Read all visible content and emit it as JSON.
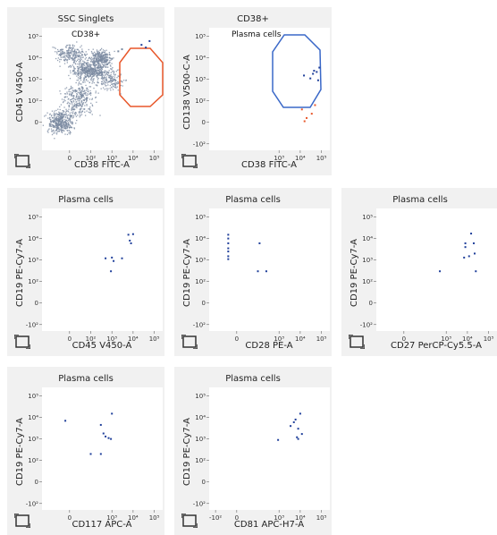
{
  "panels": [
    {
      "id": "ssc-singlets",
      "title": "SSC Singlets",
      "x_axis": "CD38 FITC-A",
      "y_axis": "CD45 V450-A",
      "gate_label": "CD38+",
      "gate_color": "#e8572a",
      "x_ticks": [
        "0",
        "10²",
        "10³",
        "10⁴",
        "10⁵"
      ],
      "y_ticks": [
        "10⁵",
        "10⁴",
        "10³",
        "10²",
        "0"
      ]
    },
    {
      "id": "cd38-pos",
      "title": "CD38+",
      "x_axis": "CD38 FITC-A",
      "y_axis": "CD138 V500-C-A",
      "gate_label": "Plasma cells",
      "gate_color": "#3a68c8",
      "x_ticks": [
        "10³",
        "10⁴",
        "10⁵"
      ],
      "y_ticks": [
        "10⁵",
        "10⁴",
        "10³",
        "10²",
        "0",
        "-10²"
      ]
    },
    {
      "id": "pc-cd45",
      "title": "Plasma cells",
      "x_axis": "CD45 V450-A",
      "y_axis": "CD19 PE-Cy7-A",
      "x_ticks": [
        "0",
        "10²",
        "10³",
        "10⁴",
        "10⁵"
      ],
      "y_ticks": [
        "10⁵",
        "10⁴",
        "10³",
        "10²",
        "0",
        "-10²"
      ]
    },
    {
      "id": "pc-cd28",
      "title": "Plasma cells",
      "x_axis": "CD28 PE-A",
      "y_axis": "CD19 PE-Cy7-A",
      "x_ticks": [
        "0",
        "10³",
        "10⁴",
        "10⁵"
      ],
      "y_ticks": [
        "10⁵",
        "10⁴",
        "10³",
        "10²",
        "0",
        "-10²"
      ]
    },
    {
      "id": "pc-cd27",
      "title": "Plasma cells",
      "x_axis": "CD27 PerCP-Cy5.5-A",
      "y_axis": "CD19 PE-Cy7-A",
      "x_ticks": [
        "0",
        "10³",
        "10⁴",
        "10⁵"
      ],
      "y_ticks": [
        "10⁵",
        "10⁴",
        "10³",
        "10²",
        "0",
        "-10²"
      ]
    },
    {
      "id": "pc-cd117",
      "title": "Plasma cells",
      "x_axis": "CD117 APC-A",
      "y_axis": "CD19 PE-Cy7-A",
      "x_ticks": [
        "0",
        "10³",
        "10⁴",
        "10⁵"
      ],
      "y_ticks": [
        "10⁵",
        "10⁴",
        "10³",
        "10²",
        "0",
        "-10²"
      ]
    },
    {
      "id": "pc-cd81",
      "title": "Plasma cells",
      "x_axis": "CD81 APC-H7-A",
      "y_axis": "CD19 PE-Cy7-A",
      "x_ticks": [
        "-10²",
        "0",
        "10³",
        "10⁴",
        "10⁵"
      ],
      "y_ticks": [
        "10⁵",
        "10⁴",
        "10³",
        "10²",
        "0",
        "-10²"
      ]
    }
  ],
  "chart_data": [
    {
      "type": "scatter",
      "title": "SSC Singlets",
      "xlabel": "CD38 FITC-A",
      "ylabel": "CD45 V450-A",
      "scale": "biexponential",
      "gate": {
        "name": "CD38+",
        "shape": "octagon",
        "color": "#e8572a"
      },
      "series": [
        {
          "color": "#7a8aa0",
          "points": [
            [
              10,
              30
            ],
            [
              20,
              60
            ],
            [
              50,
              80
            ],
            [
              300,
              2000
            ],
            [
              600,
              5000
            ],
            [
              1000,
              9000
            ],
            [
              2000,
              20000
            ],
            [
              3000,
              25000
            ]
          ]
        },
        {
          "name": "CD38+",
          "color": "#1f3f9a",
          "points": [
            [
              25000,
              40000
            ],
            [
              60000,
              60000
            ],
            [
              40000,
              30000
            ]
          ]
        }
      ]
    },
    {
      "type": "scatter",
      "title": "CD38+",
      "xlabel": "CD38 FITC-A",
      "ylabel": "CD138 V500-C-A",
      "scale": "biexponential",
      "gate": {
        "name": "Plasma cells",
        "shape": "octagon",
        "color": "#3a68c8"
      },
      "series": [
        {
          "name": "Plasma cells",
          "color": "#1f3f9a",
          "points": [
            [
              15000,
              1500
            ],
            [
              30000,
              1100
            ],
            [
              45000,
              2500
            ],
            [
              60000,
              2200
            ],
            [
              80000,
              3500
            ],
            [
              70000,
              900
            ],
            [
              40000,
              1800
            ]
          ]
        },
        {
          "color": "#e8572a",
          "points": [
            [
              12000,
              60
            ],
            [
              20000,
              20
            ],
            [
              35000,
              40
            ],
            [
              50000,
              80
            ],
            [
              16000,
              5
            ]
          ]
        }
      ]
    },
    {
      "type": "scatter",
      "title": "Plasma cells",
      "xlabel": "CD45 V450-A",
      "ylabel": "CD19 PE-Cy7-A",
      "scale": "biexponential",
      "series": [
        {
          "color": "#1f3f9a",
          "points": [
            [
              6000,
              15000
            ],
            [
              7000,
              8000
            ],
            [
              8000,
              6000
            ],
            [
              10000,
              16000
            ],
            [
              1000,
              1300
            ],
            [
              1200,
              900
            ],
            [
              3000,
              1200
            ],
            [
              500,
              1200
            ],
            [
              900,
              300
            ]
          ]
        }
      ]
    },
    {
      "type": "scatter",
      "title": "Plasma cells",
      "xlabel": "CD28 PE-A",
      "ylabel": "CD19 PE-Cy7-A",
      "scale": "biexponential",
      "series": [
        {
          "color": "#1f3f9a",
          "points": [
            [
              -40,
              15000
            ],
            [
              -40,
              10000
            ],
            [
              -40,
              6000
            ],
            [
              -40,
              3500
            ],
            [
              -40,
              2500
            ],
            [
              -40,
              1500
            ],
            [
              -40,
              1100
            ],
            [
              120,
              6000
            ],
            [
              100,
              300
            ],
            [
              250,
              300
            ]
          ]
        }
      ]
    },
    {
      "type": "scatter",
      "title": "Plasma cells",
      "xlabel": "CD27 PerCP-Cy5.5-A",
      "ylabel": "CD19 PE-Cy7-A",
      "scale": "biexponential",
      "series": [
        {
          "color": "#1f3f9a",
          "points": [
            [
              8000,
              6000
            ],
            [
              8000,
              4000
            ],
            [
              12000,
              1500
            ],
            [
              7000,
              1300
            ],
            [
              20000,
              6000
            ],
            [
              15000,
              17000
            ],
            [
              22000,
              2000
            ],
            [
              25000,
              300
            ],
            [
              500,
              300
            ]
          ]
        }
      ]
    },
    {
      "type": "scatter",
      "title": "Plasma cells",
      "xlabel": "CD117 APC-A",
      "ylabel": "CD19 PE-Cy7-A",
      "scale": "biexponential",
      "series": [
        {
          "color": "#1f3f9a",
          "points": [
            [
              -20,
              7000
            ],
            [
              300,
              4500
            ],
            [
              400,
              1800
            ],
            [
              500,
              1300
            ],
            [
              700,
              1100
            ],
            [
              900,
              1000
            ],
            [
              1000,
              15000
            ],
            [
              100,
              200
            ],
            [
              300,
              200
            ]
          ]
        }
      ]
    },
    {
      "type": "scatter",
      "title": "Plasma cells",
      "xlabel": "CD81 APC-H7-A",
      "ylabel": "CD19 PE-Cy7-A",
      "scale": "biexponential",
      "series": [
        {
          "color": "#1f3f9a",
          "points": [
            [
              3500,
              4000
            ],
            [
              5000,
              6000
            ],
            [
              6000,
              8000
            ],
            [
              7000,
              1200
            ],
            [
              8000,
              1000
            ],
            [
              12000,
              1700
            ],
            [
              10000,
              15000
            ],
            [
              900,
              900
            ],
            [
              8000,
              3000
            ]
          ]
        }
      ]
    }
  ]
}
